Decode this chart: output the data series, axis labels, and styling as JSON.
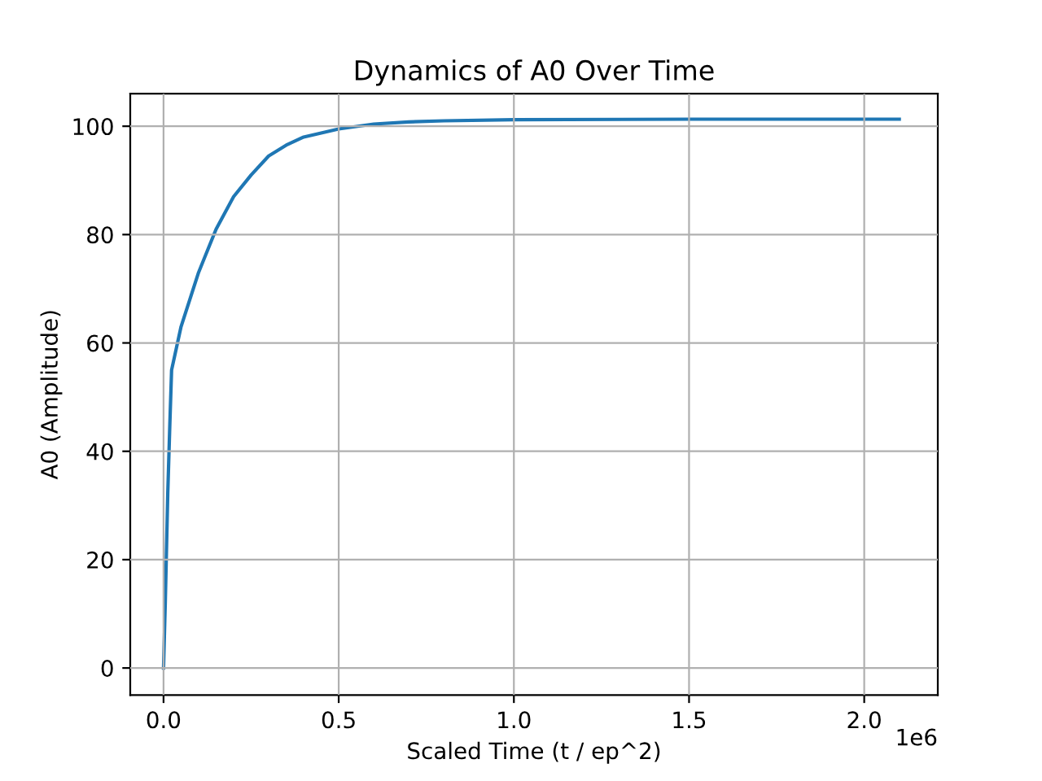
{
  "chart_data": {
    "type": "line",
    "title": "Dynamics of A0 Over Time",
    "xlabel": "Scaled Time (t / ep^2)",
    "ylabel": "A0 (Amplitude)",
    "x": [
      0,
      0.005,
      0.012,
      0.018,
      0.023,
      0.05,
      0.1,
      0.15,
      0.2,
      0.25,
      0.3,
      0.35,
      0.4,
      0.5,
      0.6,
      0.7,
      0.8,
      1.0,
      1.5,
      2.1
    ],
    "series": [
      {
        "color": "#1f77b4",
        "values": [
          0,
          12,
          32,
          45,
          55,
          63,
          73,
          81,
          87,
          91,
          94.5,
          96.5,
          98,
          99.5,
          100.4,
          100.8,
          101,
          101.2,
          101.3,
          101.3
        ]
      }
    ],
    "xlim": [
      -0.095,
      2.21
    ],
    "ylim": [
      -5,
      106
    ],
    "xticks": [
      {
        "value": 0,
        "label": "0.0"
      },
      0.5,
      {
        "value": 1,
        "label": "1.0"
      },
      1.5,
      {
        "value": 2,
        "label": "2.0"
      }
    ],
    "yticks": [
      0,
      20,
      40,
      60,
      80,
      100
    ],
    "annotations": [
      "1e6"
    ],
    "grid": true,
    "marker": "none",
    "line_style": "solid"
  }
}
